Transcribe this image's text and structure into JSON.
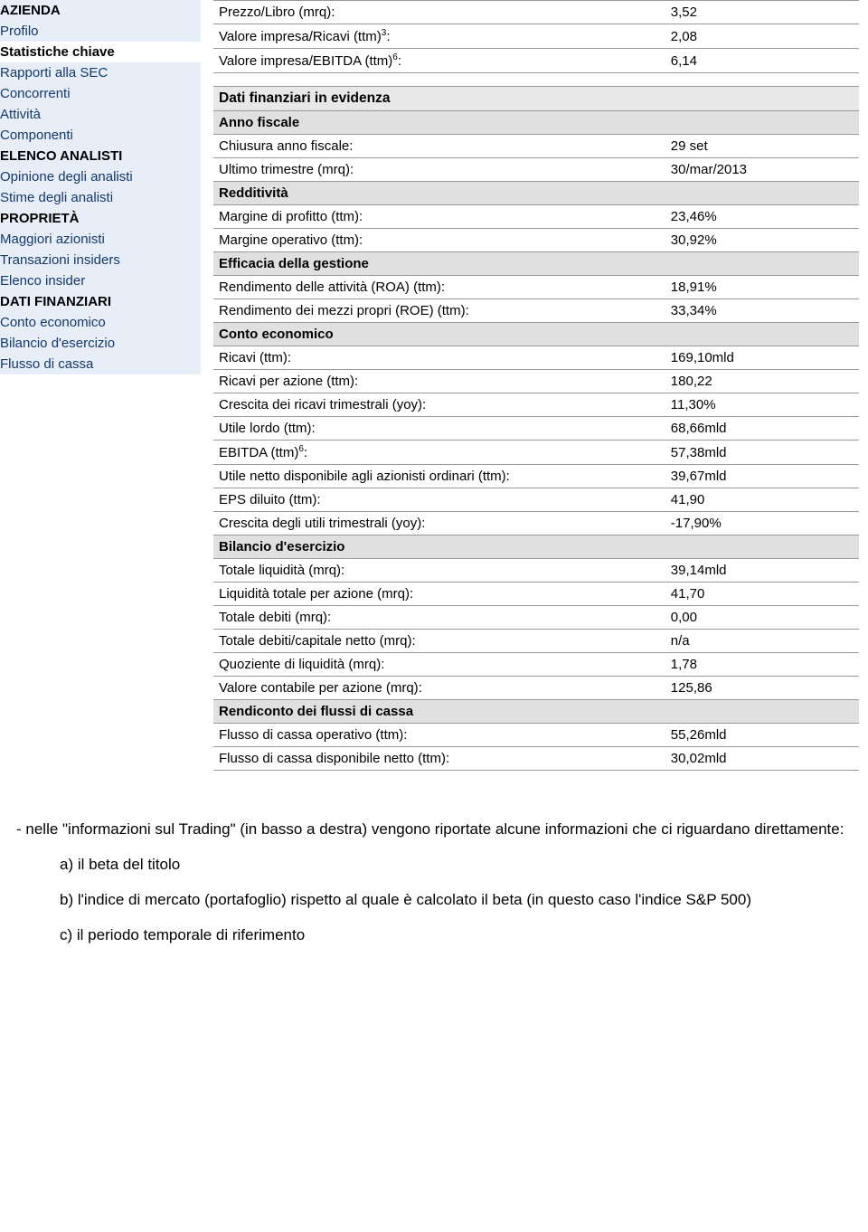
{
  "sidebar": {
    "groups": [
      {
        "heading": "AZIENDA",
        "items": [
          {
            "label": "Profilo",
            "active": false
          },
          {
            "label": "Statistiche chiave",
            "active": true
          },
          {
            "label": "Rapporti alla SEC",
            "active": false
          },
          {
            "label": "Concorrenti",
            "active": false
          },
          {
            "label": "Attività",
            "active": false
          },
          {
            "label": "Componenti",
            "active": false
          }
        ]
      },
      {
        "heading": "ELENCO ANALISTI",
        "items": [
          {
            "label": "Opinione degli analisti",
            "active": false
          },
          {
            "label": "Stime degli analisti",
            "active": false
          }
        ]
      },
      {
        "heading": "PROPRIETÀ",
        "items": [
          {
            "label": "Maggiori azionisti",
            "active": false
          },
          {
            "label": "Transazioni insiders",
            "active": false
          },
          {
            "label": "Elenco insider",
            "active": false
          }
        ]
      },
      {
        "heading": "DATI FINANZIARI",
        "items": [
          {
            "label": "Conto economico",
            "active": false
          },
          {
            "label": "Bilancio d'esercizio",
            "active": false
          },
          {
            "label": "Flusso di cassa",
            "active": false
          }
        ]
      }
    ]
  },
  "top_metrics": [
    {
      "label": "Prezzo/Libro (mrq):",
      "value": "3,52"
    },
    {
      "label": "Valore impresa/Ricavi (ttm)",
      "sup": "3",
      "suffix": ":",
      "value": "2,08"
    },
    {
      "label": "Valore impresa/EBITDA (ttm)",
      "sup": "6",
      "suffix": ":",
      "value": "6,14"
    }
  ],
  "financials": {
    "title": "Dati finanziari in evidenza",
    "sections": [
      {
        "heading": "Anno fiscale",
        "rows": [
          {
            "label": "Chiusura anno fiscale:",
            "value": "29 set"
          },
          {
            "label": "Ultimo trimestre (mrq):",
            "value": "30/mar/2013"
          }
        ]
      },
      {
        "heading": "Redditività",
        "rows": [
          {
            "label": "Margine di profitto (ttm):",
            "value": "23,46%"
          },
          {
            "label": "Margine operativo (ttm):",
            "value": "30,92%"
          }
        ]
      },
      {
        "heading": "Efficacia della gestione",
        "rows": [
          {
            "label": "Rendimento delle attività (ROA) (ttm):",
            "value": "18,91%"
          },
          {
            "label": "Rendimento dei mezzi propri (ROE) (ttm):",
            "value": "33,34%"
          }
        ]
      },
      {
        "heading": "Conto economico",
        "rows": [
          {
            "label": "Ricavi (ttm):",
            "value": "169,10mld"
          },
          {
            "label": "Ricavi per azione (ttm):",
            "value": "180,22"
          },
          {
            "label": "Crescita dei ricavi trimestrali (yoy):",
            "value": "11,30%"
          },
          {
            "label": "Utile lordo (ttm):",
            "value": "68,66mld"
          },
          {
            "label": "EBITDA (ttm)",
            "sup": "6",
            "suffix": ":",
            "value": "57,38mld"
          },
          {
            "label": "Utile netto disponibile agli azionisti ordinari (ttm):",
            "value": "39,67mld"
          },
          {
            "label": "EPS diluito (ttm):",
            "value": "41,90"
          },
          {
            "label": "Crescita degli utili trimestrali (yoy):",
            "value": "-17,90%"
          }
        ]
      },
      {
        "heading": "Bilancio d'esercizio",
        "rows": [
          {
            "label": "Totale liquidità (mrq):",
            "value": "39,14mld"
          },
          {
            "label": "Liquidità totale per azione (mrq):",
            "value": "41,70"
          },
          {
            "label": "Totale debiti (mrq):",
            "value": "0,00"
          },
          {
            "label": "Totale debiti/capitale netto (mrq):",
            "value": "n/a"
          },
          {
            "label": "Quoziente di liquidità (mrq):",
            "value": "1,78"
          },
          {
            "label": "Valore contabile per azione (mrq):",
            "value": "125,86"
          }
        ]
      },
      {
        "heading": "Rendiconto dei flussi di cassa",
        "rows": [
          {
            "label": "Flusso di cassa operativo (ttm):",
            "value": "55,26mld"
          },
          {
            "label": "Flusso di cassa disponibile netto (ttm):",
            "value": "30,02mld"
          }
        ]
      }
    ]
  },
  "notes": {
    "intro": "- nelle \"informazioni sul Trading\" (in basso a destra) vengono riportate alcune informazioni che ci riguardano direttamente:",
    "a": "a) il beta del titolo",
    "b": "b) l'indice di mercato (portafoglio) rispetto al quale è calcolato il beta (in questo caso l'indice S&P 500)",
    "c": "c) il periodo temporale di riferimento"
  },
  "colors": {
    "sidebar_bg": "#e8eef7",
    "link_color": "#14396a",
    "section_bg": "#e8e8e8",
    "subsection_bg": "#e0e0e0",
    "border": "#999999"
  }
}
